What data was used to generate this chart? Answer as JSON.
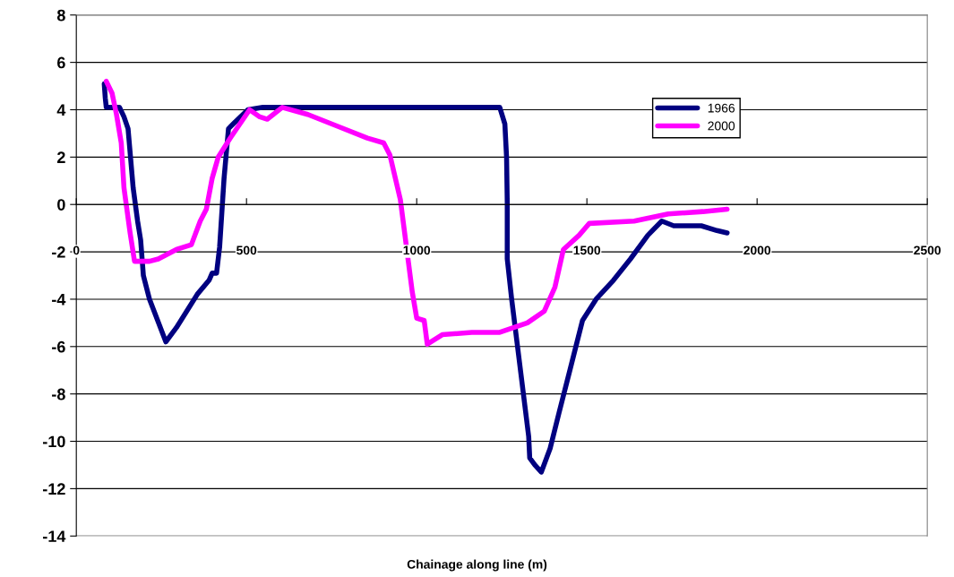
{
  "chart_data": {
    "type": "line",
    "xlabel": "Chainage along line (m)",
    "xlim": [
      0,
      2500
    ],
    "xticks": [
      0,
      500,
      1000,
      1500,
      2000,
      2500
    ],
    "ylim": [
      -14,
      8
    ],
    "yticks": [
      -14,
      -12,
      -10,
      -8,
      -6,
      -4,
      -2,
      0,
      2,
      4,
      6,
      8
    ],
    "grid": "y",
    "legend": "top right",
    "marker": "none",
    "line_style": "solid",
    "series": [
      {
        "name": "1966",
        "color": "#000080",
        "x": [
          82,
          85,
          88,
          127,
          140,
          152,
          167,
          180,
          189,
          197,
          215,
          263,
          294,
          355,
          390,
          399,
          412,
          421,
          434,
          447,
          461,
          504,
          548,
          1244,
          1259,
          1264,
          1266,
          1266,
          1279,
          1329,
          1332,
          1347,
          1366,
          1392,
          1418,
          1450,
          1487,
          1527,
          1578,
          1628,
          1679,
          1720,
          1755,
          1836,
          1882,
          1912
        ],
        "values": [
          5.1,
          4.5,
          4.1,
          4.1,
          3.7,
          3.2,
          0.7,
          -0.7,
          -1.5,
          -3.0,
          -4.0,
          -5.8,
          -5.2,
          -3.8,
          -3.2,
          -2.9,
          -2.9,
          -1.8,
          1.1,
          3.2,
          3.4,
          4.0,
          4.1,
          4.1,
          3.4,
          2.0,
          0.1,
          -2.3,
          -4.0,
          -9.8,
          -10.7,
          -11.0,
          -11.3,
          -10.3,
          -8.8,
          -7.0,
          -4.9,
          -4.0,
          -3.2,
          -2.3,
          -1.3,
          -0.7,
          -0.9,
          -0.9,
          -1.1,
          -1.2
        ]
      },
      {
        "name": "2000",
        "color": "#ff00ff",
        "x": [
          88,
          105,
          118,
          132,
          140,
          158,
          171,
          215,
          241,
          294,
          338,
          364,
          382,
          399,
          417,
          452,
          509,
          539,
          561,
          605,
          680,
          768,
          855,
          903,
          921,
          952,
          987,
          1000,
          1022,
          1031,
          1075,
          1162,
          1244,
          1325,
          1375,
          1406,
          1431,
          1477,
          1507,
          1639,
          1739,
          1841,
          1912
        ],
        "values": [
          5.2,
          4.7,
          3.8,
          2.6,
          0.7,
          -1.2,
          -2.4,
          -2.4,
          -2.3,
          -1.9,
          -1.7,
          -0.7,
          -0.2,
          1.1,
          2.0,
          2.8,
          4.0,
          3.7,
          3.6,
          4.1,
          3.8,
          3.3,
          2.8,
          2.6,
          2.1,
          0.2,
          -3.7,
          -4.8,
          -4.9,
          -5.9,
          -5.5,
          -5.4,
          -5.4,
          -5.0,
          -4.5,
          -3.5,
          -1.9,
          -1.3,
          -0.8,
          -0.7,
          -0.4,
          -0.3,
          -0.2
        ]
      }
    ]
  }
}
